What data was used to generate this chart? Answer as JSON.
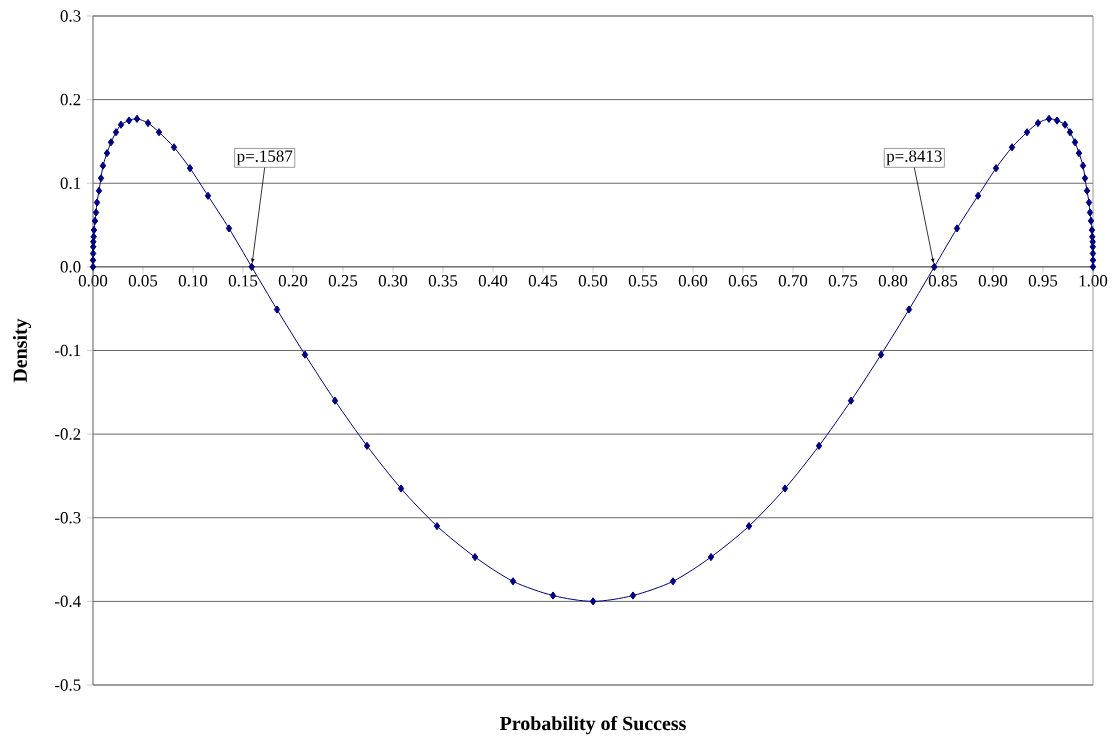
{
  "chart_data": {
    "type": "line",
    "xlabel": "Probability of Success",
    "ylabel": "Density",
    "x": [
      0.0,
      0.0,
      0.0001,
      0.0002,
      0.0003,
      0.0007,
      0.001,
      0.002,
      0.003,
      0.004,
      0.006,
      0.008,
      0.01,
      0.014,
      0.018,
      0.023,
      0.028,
      0.036,
      0.044,
      0.055,
      0.066,
      0.081,
      0.097,
      0.115,
      0.136,
      0.1587,
      0.184,
      0.212,
      0.242,
      0.274,
      0.308,
      0.344,
      0.382,
      0.42,
      0.46,
      0.5,
      0.54,
      0.58,
      0.618,
      0.656,
      0.692,
      0.726,
      0.758,
      0.788,
      0.816,
      0.8413,
      0.864,
      0.885,
      0.903,
      0.919,
      0.934,
      0.945,
      0.956,
      0.964,
      0.972,
      0.977,
      0.982,
      0.986,
      0.99,
      0.992,
      0.994,
      0.996,
      0.997,
      0.998,
      0.999,
      0.9993,
      0.9997,
      0.9998,
      0.9999,
      1.0,
      1.0
    ],
    "values": [
      0.0,
      0.008,
      0.016,
      0.024,
      0.03,
      0.036,
      0.044,
      0.055,
      0.065,
      0.077,
      0.091,
      0.106,
      0.121,
      0.136,
      0.149,
      0.161,
      0.17,
      0.175,
      0.177,
      0.172,
      0.161,
      0.143,
      0.118,
      0.085,
      0.046,
      0.0,
      -0.051,
      -0.105,
      -0.16,
      -0.214,
      -0.265,
      -0.31,
      -0.347,
      -0.376,
      -0.393,
      -0.4,
      -0.393,
      -0.376,
      -0.347,
      -0.31,
      -0.265,
      -0.214,
      -0.16,
      -0.105,
      -0.051,
      0.0,
      0.046,
      0.085,
      0.118,
      0.143,
      0.161,
      0.172,
      0.177,
      0.175,
      0.17,
      0.161,
      0.149,
      0.136,
      0.121,
      0.106,
      0.091,
      0.077,
      0.065,
      0.055,
      0.044,
      0.036,
      0.03,
      0.024,
      0.016,
      0.008,
      0.0
    ],
    "color": "#000080",
    "marker": "diamond",
    "line_style": "solid",
    "grid": "y",
    "xlim": [
      0,
      1
    ],
    "ylim": [
      -0.5,
      0.3
    ],
    "xticks": [
      {
        "value": 0,
        "label": "0.00"
      },
      {
        "value": 0.05,
        "label": "0.05"
      },
      {
        "value": 0.1,
        "label": "0.10"
      },
      {
        "value": 0.15,
        "label": "0.15"
      },
      {
        "value": 0.2,
        "label": "0.20"
      },
      {
        "value": 0.25,
        "label": "0.25"
      },
      {
        "value": 0.3,
        "label": "0.30"
      },
      {
        "value": 0.35,
        "label": "0.35"
      },
      {
        "value": 0.4,
        "label": "0.40"
      },
      {
        "value": 0.45,
        "label": "0.45"
      },
      {
        "value": 0.5,
        "label": "0.50"
      },
      {
        "value": 0.55,
        "label": "0.55"
      },
      {
        "value": 0.6,
        "label": "0.60"
      },
      {
        "value": 0.65,
        "label": "0.65"
      },
      {
        "value": 0.7,
        "label": "0.70"
      },
      {
        "value": 0.75,
        "label": "0.75"
      },
      {
        "value": 0.8,
        "label": "0.80"
      },
      {
        "value": 0.85,
        "label": "0.85"
      },
      {
        "value": 0.9,
        "label": "0.90"
      },
      {
        "value": 0.95,
        "label": "0.95"
      },
      {
        "value": 1,
        "label": "1.00"
      }
    ],
    "yticks": [
      -0.5,
      -0.4,
      -0.3,
      -0.2,
      -0.1,
      {
        "value": 0,
        "label": "0.0"
      },
      0.1,
      0.2,
      0.3
    ],
    "annotations": [
      {
        "text": "p=.1587",
        "x": 0.1587,
        "y": 0
      },
      {
        "text": "p=.8413",
        "x": 0.8413,
        "y": 0
      }
    ]
  }
}
